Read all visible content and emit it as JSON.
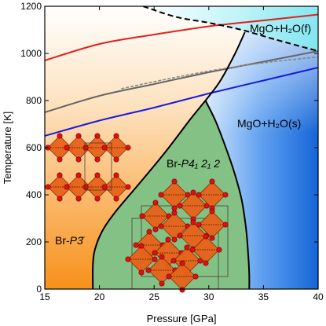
{
  "chart_data": {
    "type": "phase-diagram",
    "xlabel": "Pressure [GPa]",
    "ylabel": "Temperature [K]",
    "xlim": [
      15,
      40
    ],
    "ylim": [
      0,
      1200
    ],
    "xticks": [
      "15",
      "20",
      "25",
      "30",
      "35",
      "40"
    ],
    "yticks": [
      "0",
      "200",
      "400",
      "600",
      "800",
      "1000",
      "1200"
    ],
    "regions": [
      {
        "label_pre": "Br-",
        "label_italic": "P3̄",
        "label_post": "",
        "color": "#f7941d"
      },
      {
        "label_pre": "Br-",
        "label_italic": "P4₁ 2₁ 2",
        "label_post": "",
        "color": "#7fbf7f"
      },
      {
        "label_pre": "MgO+H₂O(s)",
        "label_italic": "",
        "label_post": "",
        "color": "#1e6fe0"
      },
      {
        "label_pre": "MgO+H₂O(f)",
        "label_italic": "",
        "label_post": "",
        "color": "#7fe8f0"
      }
    ],
    "boundaries": {
      "br_p3_to_p41212": {
        "x": [
          19.4,
          19.4,
          19.6,
          20.3,
          21.5,
          23.5,
          26.0,
          28.3,
          29.7
        ],
        "y": [
          0,
          100,
          170,
          250,
          330,
          440,
          580,
          720,
          800
        ]
      },
      "p41212_to_mgo": {
        "x": [
          29.7,
          30.6,
          31.4,
          32.3,
          33.0,
          33.4,
          33.6,
          33.7,
          33.7
        ],
        "y": [
          800,
          715,
          620,
          500,
          380,
          260,
          150,
          60,
          0
        ]
      },
      "solid_fluid": {
        "x": [
          29.7,
          31.0,
          32.3,
          33.3
        ],
        "y": [
          800,
          880,
          990,
          1090
        ]
      },
      "melting_dashed": {
        "x": [
          24.0,
          27.0,
          30.0,
          33.0,
          36.0,
          40.0
        ],
        "y": [
          1200,
          1155,
          1130,
          1100,
          1060,
          1010
        ]
      }
    },
    "series": [
      {
        "color": "#e02020",
        "x": [
          15,
          20,
          25,
          30,
          35,
          40
        ],
        "y": [
          970,
          1040,
          1080,
          1115,
          1140,
          1165
        ]
      },
      {
        "color": "#666666",
        "x": [
          15,
          20,
          25,
          30,
          35,
          40
        ],
        "y": [
          750,
          820,
          870,
          920,
          965,
          1010
        ]
      },
      {
        "color": "#888888",
        "style": "dashed",
        "x": [
          22,
          25,
          30,
          35,
          40
        ],
        "y": [
          850,
          880,
          925,
          960,
          985
        ]
      },
      {
        "color": "#1a1ae0",
        "x": [
          15,
          20,
          25,
          30,
          35,
          40
        ],
        "y": [
          650,
          715,
          770,
          830,
          885,
          940
        ]
      }
    ],
    "grid": false
  }
}
